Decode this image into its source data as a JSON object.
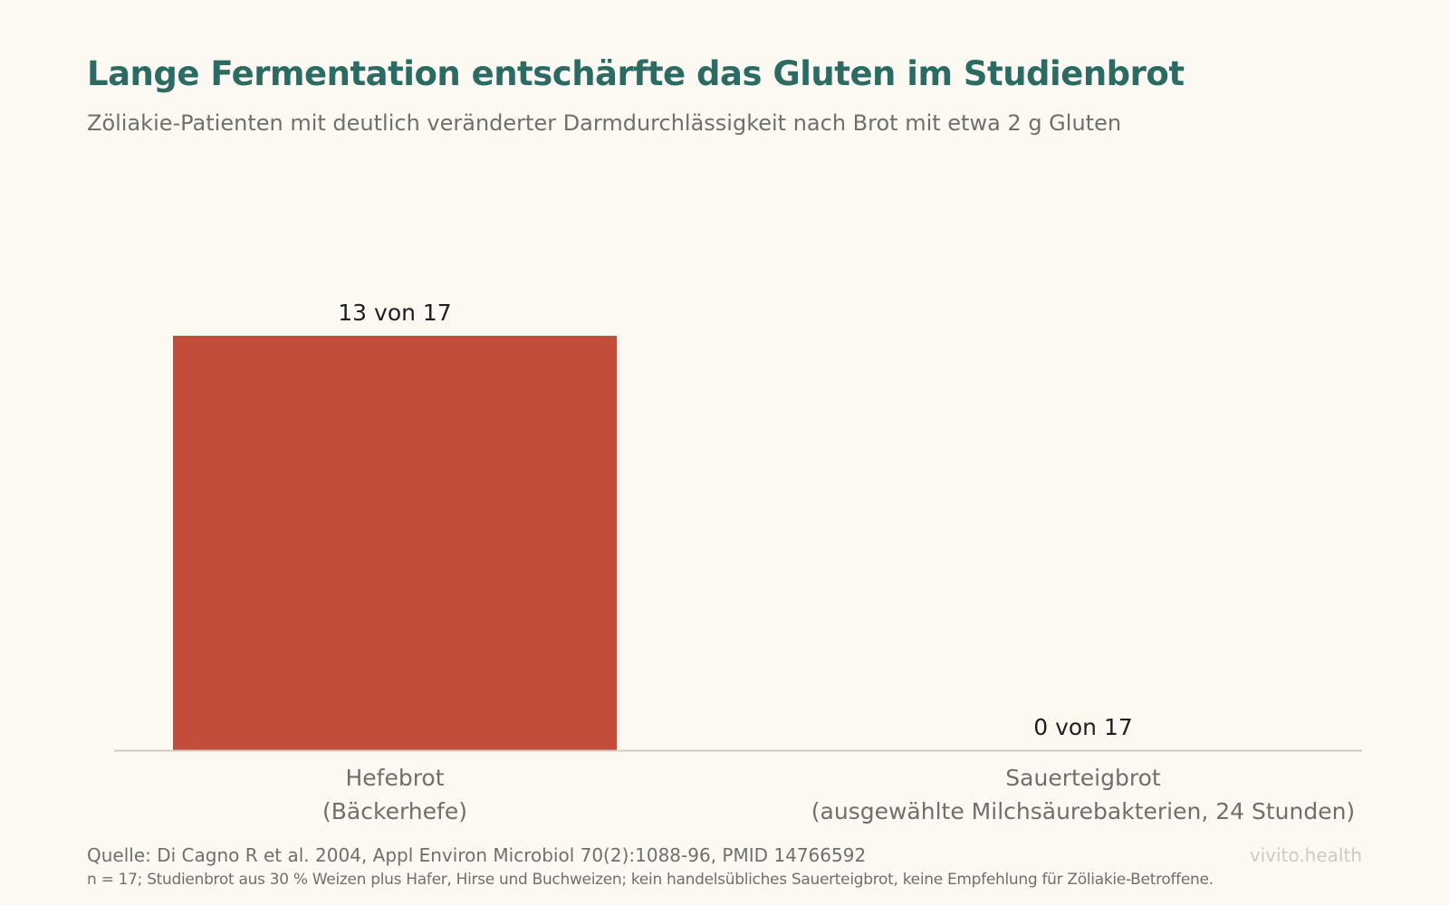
{
  "title": "Lange Fermentation entschärfte das Gluten im Studienbrot",
  "subtitle": "Zöliakie-Patienten mit deutlich veränderter Darmdurchlässigkeit nach Brot mit etwa 2 g Gluten",
  "source": "Quelle: Di Cagno R et al. 2004, Appl Environ Microbiol 70(2):1088-96, PMID 14766592",
  "note": "n = 17; Studienbrot aus 30 % Weizen plus Hafer, Hirse und Buchweizen; kein handelsübliches Sauerteigbrot, keine Empfehlung für Zöliakie-Betroffene.",
  "brand": "vivito.health",
  "colors": {
    "bar": "#c24d3a",
    "title": "#2c6b63",
    "axis": "#cfcac2"
  },
  "chart_data": {
    "type": "bar",
    "categories": [
      [
        "Hefebrot",
        "(Bäckerhefe)"
      ],
      [
        "Sauerteigbrot",
        "(ausgewählte Milchsäurebakterien, 24 Stunden)"
      ]
    ],
    "values": [
      13,
      0
    ],
    "total": 17,
    "value_labels": [
      "13 von 17",
      "0 von 17"
    ],
    "ylim": [
      0,
      13
    ],
    "grid": false,
    "legend": "none"
  }
}
